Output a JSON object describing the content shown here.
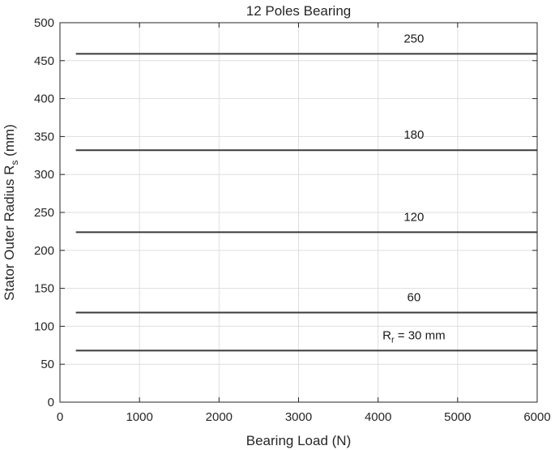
{
  "chart_data": {
    "type": "line",
    "title": "12 Poles Bearing",
    "xlabel": "Bearing Load (N)",
    "ylabel": {
      "main": "Stator Outer Radius R",
      "sub": "s",
      "suffix": " (mm)"
    },
    "xlim": [
      0,
      6000
    ],
    "ylim": [
      0,
      500
    ],
    "xticks": [
      0,
      1000,
      2000,
      3000,
      4000,
      5000,
      6000
    ],
    "yticks": [
      0,
      50,
      100,
      150,
      200,
      250,
      300,
      350,
      400,
      450,
      500
    ],
    "grid": true,
    "series": [
      {
        "x": [
          200,
          6000
        ],
        "y": [
          68,
          68
        ]
      },
      {
        "x": [
          200,
          6000
        ],
        "y": [
          118,
          118
        ]
      },
      {
        "x": [
          200,
          6000
        ],
        "y": [
          224,
          224
        ]
      },
      {
        "x": [
          200,
          6000
        ],
        "y": [
          332,
          332
        ]
      },
      {
        "x": [
          200,
          6000
        ],
        "y": [
          459,
          459
        ]
      }
    ],
    "annotations": [
      {
        "main": "R",
        "sub": "r",
        "suffix": " = 30 mm",
        "x": 4450,
        "y": 83
      },
      {
        "main": "60",
        "sub": "",
        "suffix": "",
        "x": 4450,
        "y": 133
      },
      {
        "main": "120",
        "sub": "",
        "suffix": "",
        "x": 4450,
        "y": 239
      },
      {
        "main": "180",
        "sub": "",
        "suffix": "",
        "x": 4450,
        "y": 347
      },
      {
        "main": "250",
        "sub": "",
        "suffix": "",
        "x": 4450,
        "y": 474
      }
    ],
    "colors": {
      "line": "#3a3a3a",
      "grid": "#dedede",
      "axis": "#262626"
    }
  }
}
